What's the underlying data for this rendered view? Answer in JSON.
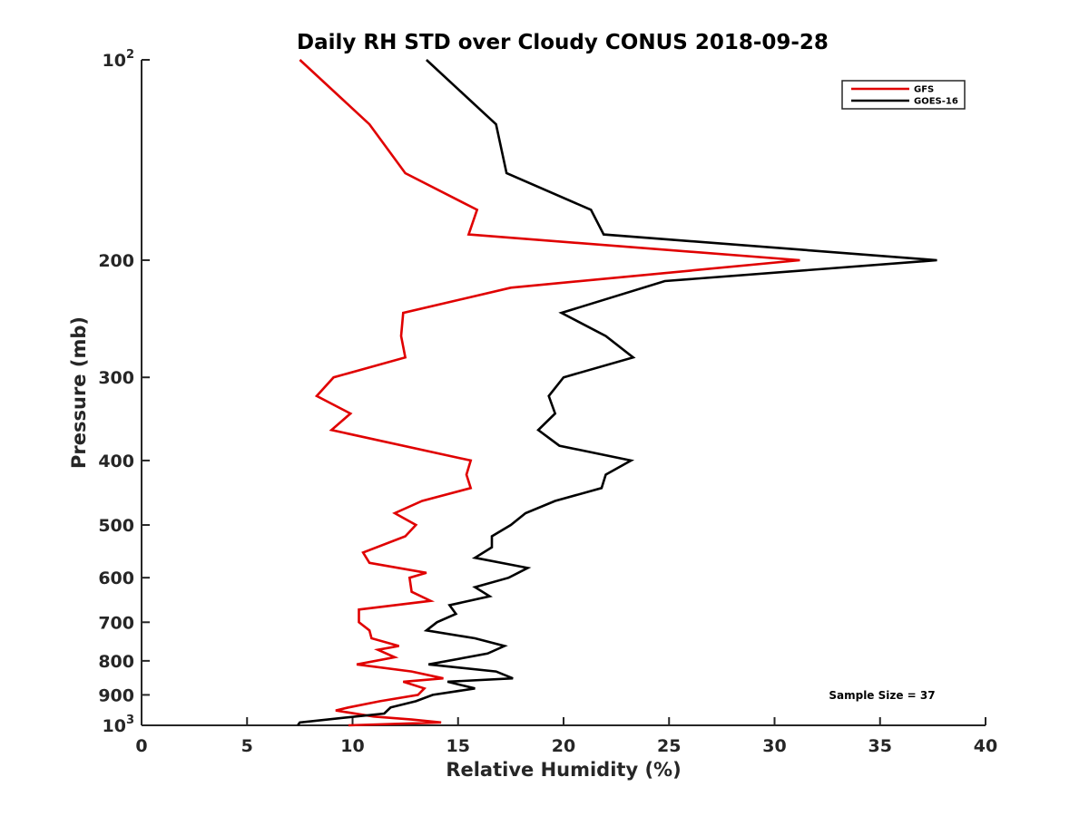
{
  "chart_data": {
    "type": "line",
    "title": "Daily RH STD over Cloudy CONUS 2018-09-28",
    "xlabel": "Relative Humidity (%)",
    "ylabel": "Pressure (mb)",
    "xlim": [
      0,
      40
    ],
    "ylim": [
      1000,
      100
    ],
    "y_scale": "log",
    "y_reversed": true,
    "grid": false,
    "legend_position": "top-right",
    "x_ticks": [
      "0",
      "5",
      "10",
      "15",
      "20",
      "25",
      "30",
      "35",
      "40"
    ],
    "y_ticks": [
      {
        "value": 100,
        "base": "10",
        "exp": "2"
      },
      {
        "value": 200,
        "label": "200"
      },
      {
        "value": 300,
        "label": "300"
      },
      {
        "value": 400,
        "label": "400"
      },
      {
        "value": 500,
        "label": "500"
      },
      {
        "value": 600,
        "label": "600"
      },
      {
        "value": 700,
        "label": "700"
      },
      {
        "value": 800,
        "label": "800"
      },
      {
        "value": 900,
        "label": "900"
      },
      {
        "value": 1000,
        "base": "10",
        "exp": "3"
      }
    ],
    "annotation": "Sample Size = 37",
    "series": [
      {
        "name": "GFS",
        "color": "#e00000",
        "points": [
          [
            7.5,
            100
          ],
          [
            10.8,
            125
          ],
          [
            12.5,
            148
          ],
          [
            15.9,
            168
          ],
          [
            15.5,
            183
          ],
          [
            31.2,
            200
          ],
          [
            17.5,
            220
          ],
          [
            12.4,
            240
          ],
          [
            12.3,
            260
          ],
          [
            12.5,
            280
          ],
          [
            9.1,
            300
          ],
          [
            8.3,
            320
          ],
          [
            9.9,
            340
          ],
          [
            9.0,
            360
          ],
          [
            15.6,
            400
          ],
          [
            15.4,
            420
          ],
          [
            15.6,
            440
          ],
          [
            13.3,
            460
          ],
          [
            12.0,
            480
          ],
          [
            13.0,
            500
          ],
          [
            12.5,
            520
          ],
          [
            10.5,
            550
          ],
          [
            10.8,
            570
          ],
          [
            13.5,
            590
          ],
          [
            12.7,
            600
          ],
          [
            12.8,
            630
          ],
          [
            13.7,
            650
          ],
          [
            10.3,
            670
          ],
          [
            10.3,
            700
          ],
          [
            10.8,
            720
          ],
          [
            10.9,
            740
          ],
          [
            12.2,
            760
          ],
          [
            11.2,
            770
          ],
          [
            12.0,
            790
          ],
          [
            10.2,
            810
          ],
          [
            12.8,
            830
          ],
          [
            14.3,
            850
          ],
          [
            12.4,
            860
          ],
          [
            13.4,
            880
          ],
          [
            13.1,
            900
          ],
          [
            11.3,
            920
          ],
          [
            9.8,
            940
          ],
          [
            9.2,
            950
          ],
          [
            11.0,
            970
          ],
          [
            12.8,
            980
          ],
          [
            14.2,
            990
          ],
          [
            9.8,
            1000
          ]
        ]
      },
      {
        "name": "GOES-16",
        "color": "#000000",
        "points": [
          [
            13.5,
            100
          ],
          [
            16.8,
            125
          ],
          [
            17.3,
            148
          ],
          [
            21.3,
            168
          ],
          [
            21.9,
            183
          ],
          [
            37.7,
            200
          ],
          [
            24.8,
            215
          ],
          [
            19.9,
            240
          ],
          [
            22.0,
            260
          ],
          [
            23.3,
            280
          ],
          [
            20.0,
            300
          ],
          [
            19.3,
            320
          ],
          [
            19.6,
            340
          ],
          [
            18.8,
            360
          ],
          [
            19.8,
            380
          ],
          [
            23.2,
            400
          ],
          [
            22.0,
            420
          ],
          [
            21.8,
            440
          ],
          [
            19.6,
            460
          ],
          [
            18.2,
            480
          ],
          [
            17.5,
            500
          ],
          [
            16.6,
            520
          ],
          [
            16.6,
            540
          ],
          [
            15.8,
            560
          ],
          [
            18.3,
            580
          ],
          [
            17.4,
            600
          ],
          [
            15.8,
            620
          ],
          [
            16.5,
            640
          ],
          [
            14.6,
            660
          ],
          [
            14.9,
            680
          ],
          [
            14.0,
            700
          ],
          [
            13.5,
            720
          ],
          [
            15.8,
            740
          ],
          [
            17.2,
            760
          ],
          [
            16.4,
            780
          ],
          [
            13.6,
            810
          ],
          [
            16.8,
            830
          ],
          [
            17.6,
            850
          ],
          [
            14.5,
            860
          ],
          [
            15.8,
            880
          ],
          [
            13.8,
            900
          ],
          [
            13.0,
            920
          ],
          [
            11.8,
            940
          ],
          [
            11.5,
            960
          ],
          [
            7.5,
            990
          ],
          [
            7.4,
            1000
          ]
        ]
      }
    ]
  }
}
